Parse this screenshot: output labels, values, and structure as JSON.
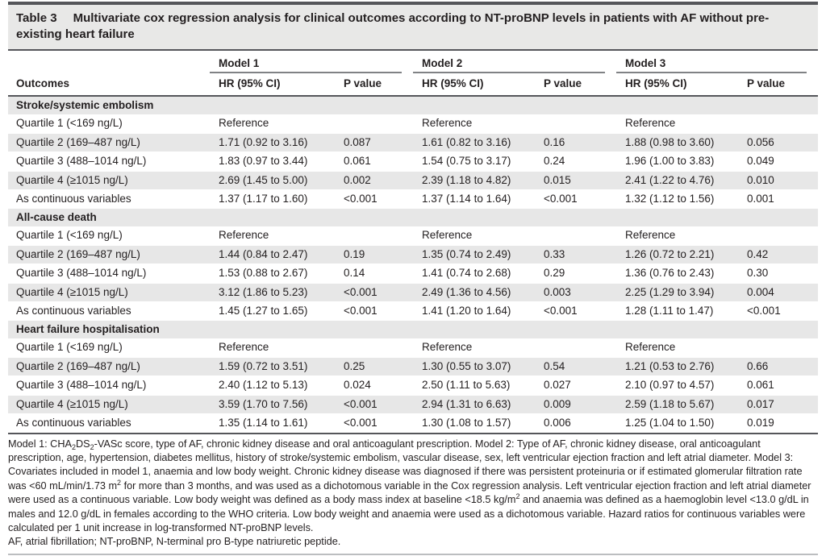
{
  "table": {
    "title_label": "Table 3",
    "title": "Multivariate cox regression analysis for clinical outcomes according to NT-proBNP levels in patients with AF without pre-existing heart failure",
    "outcomes_header": "Outcomes",
    "col_groups": [
      "Model 1",
      "Model 2",
      "Model 3"
    ],
    "sub_headers": [
      "HR (95% CI)",
      "P value"
    ],
    "sections": [
      {
        "name": "Stroke/systemic embolism",
        "rows": [
          {
            "label": "Quartile 1 (<169 ng/L)",
            "cells": [
              "Reference",
              "",
              "Reference",
              "",
              "Reference",
              ""
            ]
          },
          {
            "label": "Quartile 2 (169–487 ng/L)",
            "cells": [
              "1.71 (0.92 to 3.16)",
              "0.087",
              "1.61 (0.82 to 3.16)",
              "0.16",
              "1.88 (0.98 to 3.60)",
              "0.056"
            ]
          },
          {
            "label": "Quartile 3 (488–1014 ng/L)",
            "cells": [
              "1.83 (0.97 to 3.44)",
              "0.061",
              "1.54 (0.75 to 3.17)",
              "0.24",
              "1.96 (1.00 to 3.83)",
              "0.049"
            ]
          },
          {
            "label": "Quartile 4 (≥1015 ng/L)",
            "cells": [
              "2.69 (1.45 to 5.00)",
              "0.002",
              "2.39 (1.18 to 4.82)",
              "0.015",
              "2.41 (1.22 to 4.76)",
              "0.010"
            ]
          },
          {
            "label": "As continuous variables",
            "cells": [
              "1.37 (1.17 to 1.60)",
              "<0.001",
              "1.37 (1.14 to 1.64)",
              "<0.001",
              "1.32 (1.12 to 1.56)",
              "0.001"
            ]
          }
        ]
      },
      {
        "name": "All-cause death",
        "rows": [
          {
            "label": "Quartile 1 (<169 ng/L)",
            "cells": [
              "Reference",
              "",
              "Reference",
              "",
              "Reference",
              ""
            ]
          },
          {
            "label": "Quartile 2 (169–487 ng/L)",
            "cells": [
              "1.44 (0.84 to 2.47)",
              "0.19",
              "1.35 (0.74 to 2.49)",
              "0.33",
              "1.26 (0.72 to 2.21)",
              "0.42"
            ]
          },
          {
            "label": "Quartile 3 (488–1014 ng/L)",
            "cells": [
              "1.53 (0.88 to 2.67)",
              "0.14",
              "1.41 (0.74 to 2.68)",
              "0.29",
              "1.36 (0.76 to 2.43)",
              "0.30"
            ]
          },
          {
            "label": "Quartile 4 (≥1015 ng/L)",
            "cells": [
              "3.12 (1.86 to 5.23)",
              "<0.001",
              "2.49 (1.36 to 4.56)",
              "0.003",
              "2.25 (1.29 to 3.94)",
              "0.004"
            ]
          },
          {
            "label": "As continuous variables",
            "cells": [
              "1.45 (1.27 to 1.65)",
              "<0.001",
              "1.41 (1.20 to 1.64)",
              "<0.001",
              "1.28 (1.11 to 1.47)",
              "<0.001"
            ]
          }
        ]
      },
      {
        "name": "Heart failure hospitalisation",
        "rows": [
          {
            "label": "Quartile 1 (<169 ng/L)",
            "cells": [
              "Reference",
              "",
              "Reference",
              "",
              "Reference",
              ""
            ]
          },
          {
            "label": "Quartile 2 (169–487 ng/L)",
            "cells": [
              "1.59 (0.72 to 3.51)",
              "0.25",
              "1.30 (0.55 to 3.07)",
              "0.54",
              "1.21 (0.53 to 2.76)",
              "0.66"
            ]
          },
          {
            "label": "Quartile 3 (488–1014 ng/L)",
            "cells": [
              "2.40 (1.12 to 5.13)",
              "0.024",
              "2.50 (1.11 to 5.63)",
              "0.027",
              "2.10 (0.97 to 4.57)",
              "0.061"
            ]
          },
          {
            "label": "Quartile 4 (≥1015 ng/L)",
            "cells": [
              "3.59 (1.70 to 7.56)",
              "<0.001",
              "2.94 (1.31 to 6.63)",
              "0.009",
              "2.59 (1.18 to 5.67)",
              "0.017"
            ]
          },
          {
            "label": "As continuous variables",
            "cells": [
              "1.35 (1.14 to 1.61)",
              "<0.001",
              "1.30 (1.08 to 1.57)",
              "0.006",
              "1.25 (1.04 to 1.50)",
              "0.019"
            ]
          }
        ]
      }
    ]
  },
  "footnotes": {
    "model_note_parts": [
      {
        "t": "Model 1: CHA"
      },
      {
        "sub": "2"
      },
      {
        "t": "DS"
      },
      {
        "sub": "2"
      },
      {
        "t": "-VASc score, type of AF, chronic kidney disease and oral anticoagulant prescription. Model 2: Type of AF, chronic kidney disease, oral anticoagulant prescription, age, hypertension, diabetes mellitus, history of stroke/systemic embolism, vascular disease, sex, left ventricular ejection fraction and left atrial diameter. Model 3: Covariates included in model 1, anaemia and low body weight. Chronic kidney disease was diagnosed if there was persistent proteinuria or if estimated glomerular filtration rate was <60 mL/min/1.73 m"
      },
      {
        "sup": "2"
      },
      {
        "t": " for more than 3 months, and was used as a dichotomous variable in the Cox regression analysis. Left ventricular ejection fraction and left atrial diameter were used as a continuous variable. Low body weight was defined as a body mass index at baseline <18.5 kg/m"
      },
      {
        "sup": "2"
      },
      {
        "t": " and anaemia was defined as a haemoglobin level <13.0 g/dL in males and 12.0 g/dL in females according to the WHO criteria. Low body weight and anaemia were used as a dichotomous variable. Hazard ratios for continuous variables were calculated per 1 unit increase in log-transformed NT-proBNP levels."
      }
    ],
    "abbreviations": "AF, atrial fibrillation; NT-proBNP, N-terminal pro B-type natriuretic peptide."
  }
}
